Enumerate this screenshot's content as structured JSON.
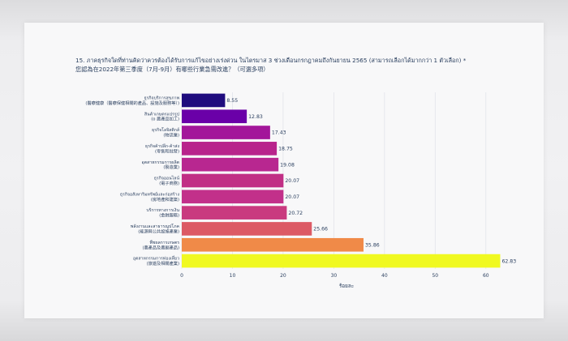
{
  "chart_data": {
    "type": "bar",
    "orientation": "horizontal",
    "title_lines": [
      "15. ภาคธุรกิจใดที่ท่านคิดว่าควรต้องได้รับการแก้ไขอย่างเร่งด่วน ในไตรมาส 3 ช่วงเดือนกรกฎาคมถึงกันยายน 2565 (สามารถเลือกได้มากกว่า 1 ตัวเลือก) *",
      "您認為在2022年第三季度（7月-9月）有哪些行業急需改進？（可選多項）"
    ],
    "categories": [
      [
        "ธุรกิจบริการสุขภาพ",
        "(醫療健康（醫療保健相關的產品、設施及服務等）)"
      ],
      [
        "สินค้าเกษตรแปรรูป",
        "(o 農產品加工)"
      ],
      [
        "ธุรกิจโลจิสติกส์",
        "(物流業)"
      ],
      [
        "ธุรกิจค้าปลีก-ค้าส่ง",
        "(零售和批發)"
      ],
      [
        "อุตสาหกรรมการผลิต",
        "(製造業)"
      ],
      [
        "ธุรกิจออนไลน์",
        "(電子商務)"
      ],
      [
        "ธุรกิจอสังหาริมทรัพย์และก่อสร้าง",
        "(房地產和建築)"
      ],
      [
        "บริการทางการเงิน",
        "(金融服務)"
      ],
      [
        "พลังงานและสาธารณูปโภค",
        "(能源與公共設施產業)"
      ],
      [
        "พืชผลการเกษตร",
        "(農產品及農副產品)"
      ],
      [
        "อุตสาหกรรมการท่องเที่ยว",
        "(旅遊及相關產業)"
      ]
    ],
    "values": [
      8.55,
      12.83,
      17.43,
      18.75,
      19.08,
      20.07,
      20.07,
      20.72,
      25.66,
      35.86,
      62.83
    ],
    "value_labels": [
      "8.55",
      "12.83",
      "17.43",
      "18.75",
      "19.08",
      "20.07",
      "20.07",
      "20.72",
      "25.66",
      "35.86",
      "62.83"
    ],
    "colors": [
      "#1f0c7e",
      "#6a00a8",
      "#a3169a",
      "#b8248c",
      "#b82790",
      "#c12f85",
      "#c2308a",
      "#c93a7f",
      "#dc5a65",
      "#f08a48",
      "#f0f921"
    ],
    "xlim": [
      0,
      65
    ],
    "x_ticks": [
      0,
      10,
      20,
      30,
      40,
      50,
      60
    ],
    "xlabel": "ร้อยละ",
    "ylabel": "",
    "grid": true
  }
}
